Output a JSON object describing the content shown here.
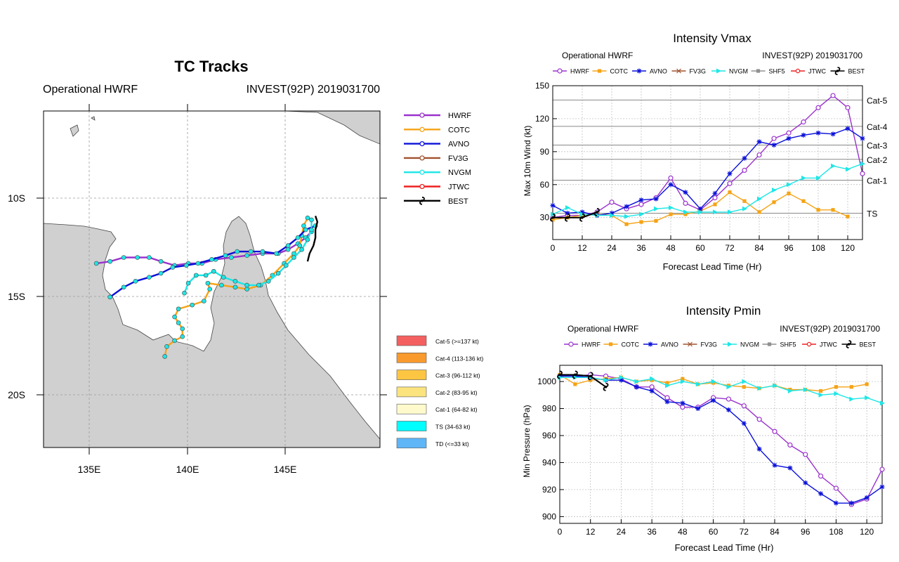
{
  "model_colors": {
    "HWRF": "#9a32cd",
    "COTC": "#f5a316",
    "AVNO": "#0a10d8",
    "FV3G": "#a0522d",
    "NVGM": "#1ee6e6",
    "SHF5": "#909090",
    "JTWC": "#ee2020",
    "BEST": "#000000"
  },
  "track_panel": {
    "title": "TC Tracks",
    "left_label": "Operational HWRF",
    "right_label": "INVEST(92P) 2019031700",
    "lat_ticks": [
      "10S",
      "15S",
      "20S"
    ],
    "lon_ticks": [
      "135E",
      "140E",
      "145E"
    ],
    "legend": [
      "HWRF",
      "COTC",
      "AVNO",
      "FV3G",
      "NVGM",
      "JTWC",
      "BEST"
    ],
    "intensity_legend": [
      {
        "label": "Cat-5 (>=137 kt)",
        "color": "#f46060"
      },
      {
        "label": "Cat-4 (113-136 kt)",
        "color": "#f99a2e"
      },
      {
        "label": "Cat-3 (96-112 kt)",
        "color": "#fcc542"
      },
      {
        "label": "Cat-2 (83-95 kt)",
        "color": "#fbe47e"
      },
      {
        "label": "Cat-1 (64-82 kt)",
        "color": "#fffacc"
      },
      {
        "label": "TS (34-63 kt)",
        "color": "#00ffff"
      },
      {
        "label": "TD (<=33 kt)",
        "color": "#5eb6f7"
      }
    ]
  },
  "vmax_panel": {
    "title": "Intensity Vmax",
    "left_label": "Operational HWRF",
    "right_label": "INVEST(92P) 2019031700",
    "ylabel": "Max 10m Wind (kt)",
    "xlabel": "Forecast Lead Time (Hr)",
    "legend": [
      "HWRF",
      "COTC",
      "AVNO",
      "FV3G",
      "NVGM",
      "SHF5",
      "JTWC",
      "BEST"
    ],
    "category_labels": [
      {
        "label": "Cat-5",
        "value": 137
      },
      {
        "label": "Cat-4",
        "value": 113
      },
      {
        "label": "Cat-3",
        "value": 96
      },
      {
        "label": "Cat-2",
        "value": 83
      },
      {
        "label": "Cat-1",
        "value": 64
      },
      {
        "label": "TS",
        "value": 34
      }
    ]
  },
  "pmin_panel": {
    "title": "Intensity Pmin",
    "left_label": "Operational HWRF",
    "right_label": "INVEST(92P) 2019031700",
    "ylabel": "Min Pressure (hPa)",
    "xlabel": "Forecast Lead Time (Hr)",
    "legend": [
      "HWRF",
      "COTC",
      "AVNO",
      "FV3G",
      "NVGM",
      "SHF5",
      "JTWC",
      "BEST"
    ]
  },
  "chart_data": [
    {
      "type": "line",
      "chart": "tracks",
      "x_axis": "longitude (deg E)",
      "y_axis": "latitude (deg S)",
      "xlim": [
        132.8,
        150
      ],
      "ylim": [
        22.5,
        5.5
      ],
      "xticks": [
        135,
        140,
        145
      ],
      "yticks": [
        10,
        15,
        20
      ],
      "series": [
        {
          "name": "HWRF",
          "points": [
            [
              135.5,
              13.2
            ],
            [
              136.2,
              13.1
            ],
            [
              136.9,
              12.9
            ],
            [
              137.6,
              12.9
            ],
            [
              138.2,
              12.9
            ],
            [
              138.8,
              13.1
            ],
            [
              139.5,
              13.3
            ],
            [
              140.2,
              13.2
            ],
            [
              140.9,
              13.2
            ],
            [
              141.6,
              13.0
            ],
            [
              142.4,
              12.9
            ],
            [
              143.2,
              12.8
            ],
            [
              144.0,
              12.7
            ],
            [
              144.8,
              12.7
            ],
            [
              145.3,
              12.5
            ],
            [
              145.8,
              12.2
            ],
            [
              146.2,
              11.9
            ],
            [
              146.5,
              11.6
            ]
          ]
        },
        {
          "name": "COTC",
          "points": [
            [
              139.0,
              17.9
            ],
            [
              139.1,
              17.4
            ],
            [
              139.5,
              17.1
            ],
            [
              139.9,
              16.9
            ],
            [
              139.9,
              16.5
            ],
            [
              139.7,
              16.2
            ],
            [
              139.5,
              15.9
            ],
            [
              139.7,
              15.5
            ],
            [
              140.4,
              15.3
            ],
            [
              141.0,
              15.1
            ],
            [
              141.3,
              14.5
            ],
            [
              141.2,
              14.2
            ],
            [
              141.9,
              14.3
            ],
            [
              142.6,
              14.4
            ],
            [
              143.2,
              14.5
            ],
            [
              143.9,
              14.3
            ],
            [
              144.5,
              13.8
            ],
            [
              145.1,
              13.2
            ],
            [
              145.6,
              12.7
            ],
            [
              145.9,
              12.3
            ],
            [
              146.0,
              11.8
            ],
            [
              146.1,
              11.3
            ],
            [
              146.3,
              10.9
            ]
          ]
        },
        {
          "name": "AVNO",
          "points": [
            [
              136.2,
              14.9
            ],
            [
              136.9,
              14.4
            ],
            [
              137.5,
              14.1
            ],
            [
              138.2,
              13.9
            ],
            [
              138.8,
              13.7
            ],
            [
              139.4,
              13.4
            ],
            [
              140.1,
              13.3
            ],
            [
              140.7,
              13.2
            ],
            [
              141.4,
              13.0
            ],
            [
              142.1,
              12.8
            ],
            [
              142.7,
              12.6
            ],
            [
              143.4,
              12.6
            ],
            [
              144.0,
              12.6
            ],
            [
              144.7,
              12.7
            ],
            [
              145.3,
              12.3
            ],
            [
              145.8,
              11.9
            ],
            [
              146.2,
              11.5
            ],
            [
              146.7,
              11.3
            ]
          ]
        },
        {
          "name": "NVGM",
          "points": [
            [
              140.0,
              14.7
            ],
            [
              140.2,
              14.2
            ],
            [
              140.6,
              13.8
            ],
            [
              141.1,
              13.8
            ],
            [
              141.5,
              13.6
            ],
            [
              142.0,
              13.9
            ],
            [
              142.6,
              14.1
            ],
            [
              143.2,
              14.3
            ],
            [
              143.8,
              14.3
            ],
            [
              144.3,
              14.1
            ],
            [
              144.8,
              13.7
            ],
            [
              145.2,
              13.3
            ],
            [
              145.6,
              12.9
            ],
            [
              146.0,
              12.5
            ],
            [
              146.3,
              12.0
            ],
            [
              146.5,
              11.5
            ],
            [
              146.5,
              11.0
            ]
          ]
        },
        {
          "name": "BEST",
          "points": [
            [
              146.3,
              13.1
            ],
            [
              146.4,
              12.7
            ],
            [
              146.6,
              12.3
            ],
            [
              146.7,
              11.9
            ],
            [
              146.7,
              11.5
            ],
            [
              146.8,
              11.1
            ],
            [
              146.7,
              10.8
            ]
          ]
        }
      ]
    },
    {
      "type": "line",
      "chart": "vmax",
      "title": "Intensity Vmax",
      "xlabel": "Forecast Lead Time (Hr)",
      "ylabel": "Max 10m Wind (kt)",
      "xlim": [
        0,
        126
      ],
      "ylim": [
        10,
        150
      ],
      "xticks": [
        0,
        12,
        24,
        36,
        48,
        60,
        72,
        84,
        96,
        108,
        120
      ],
      "yticks": [
        30,
        60,
        90,
        120,
        150
      ],
      "series": [
        {
          "name": "HWRF",
          "x": [
            0,
            6,
            12,
            18,
            24,
            30,
            36,
            42,
            48,
            54,
            60,
            66,
            72,
            78,
            84,
            90,
            96,
            102,
            108,
            114,
            120,
            126
          ],
          "values": [
            30,
            32,
            32,
            35,
            44,
            38,
            42,
            48,
            66,
            43,
            37,
            48,
            61,
            73,
            87,
            102,
            107,
            117,
            130,
            141,
            130,
            70
          ]
        },
        {
          "name": "COTC",
          "x": [
            0,
            6,
            12,
            18,
            24,
            30,
            36,
            42,
            48,
            54,
            60,
            66,
            72,
            78,
            84,
            90,
            96,
            102,
            108,
            114,
            120
          ],
          "values": [
            28,
            30,
            32,
            33,
            32,
            24,
            26,
            27,
            33,
            33,
            36,
            42,
            53,
            45,
            35,
            44,
            52,
            45,
            37,
            37,
            31
          ]
        },
        {
          "name": "AVNO",
          "x": [
            0,
            6,
            12,
            18,
            24,
            30,
            36,
            42,
            48,
            54,
            60,
            66,
            72,
            78,
            84,
            90,
            96,
            102,
            108,
            114,
            120,
            126
          ],
          "values": [
            41,
            34,
            35,
            32,
            34,
            40,
            46,
            47,
            60,
            53,
            38,
            52,
            70,
            84,
            99,
            96,
            102,
            105,
            107,
            106,
            111,
            102
          ]
        },
        {
          "name": "NVGM",
          "x": [
            0,
            6,
            12,
            18,
            24,
            30,
            36,
            42,
            48,
            54,
            60,
            66,
            72,
            78,
            84,
            90,
            96,
            102,
            108,
            114,
            120,
            126
          ],
          "values": [
            33,
            39,
            33,
            32,
            32,
            31,
            33,
            38,
            39,
            35,
            35,
            35,
            35,
            38,
            47,
            55,
            60,
            66,
            66,
            77,
            74,
            79
          ]
        },
        {
          "name": "BEST",
          "x": [
            0,
            6,
            12,
            18
          ],
          "values": [
            30,
            30,
            30,
            35
          ]
        }
      ]
    },
    {
      "type": "line",
      "chart": "pmin",
      "title": "Intensity Pmin",
      "xlabel": "Forecast Lead Time (Hr)",
      "ylabel": "Min Pressure (hPa)",
      "xlim": [
        0,
        126
      ],
      "ylim": [
        895,
        1012
      ],
      "xticks": [
        0,
        12,
        24,
        36,
        48,
        60,
        72,
        84,
        96,
        108,
        120
      ],
      "yticks": [
        900,
        920,
        940,
        960,
        980,
        1000
      ],
      "series": [
        {
          "name": "HWRF",
          "x": [
            0,
            6,
            12,
            18,
            24,
            30,
            36,
            42,
            48,
            54,
            60,
            66,
            72,
            78,
            84,
            90,
            96,
            102,
            108,
            114,
            120,
            126
          ],
          "values": [
            1004,
            1004,
            1005,
            1004,
            1002,
            996,
            996,
            988,
            981,
            981,
            988,
            987,
            982,
            972,
            963,
            953,
            946,
            930,
            921,
            909,
            913,
            935
          ]
        },
        {
          "name": "COTC",
          "x": [
            0,
            6,
            12,
            18,
            24,
            30,
            36,
            42,
            48,
            54,
            60,
            66,
            72,
            78,
            84,
            90,
            96,
            102,
            108,
            114,
            120,
            126
          ],
          "values": [
            1005,
            998,
            1001,
            1002,
            1003,
            1000,
            1001,
            999,
            1002,
            998,
            999,
            997,
            996,
            995,
            997,
            994,
            994,
            993,
            996,
            996,
            998,
            null
          ]
        },
        {
          "name": "AVNO",
          "x": [
            0,
            6,
            12,
            18,
            24,
            30,
            36,
            42,
            48,
            54,
            60,
            66,
            72,
            78,
            84,
            90,
            96,
            102,
            108,
            114,
            120,
            126
          ],
          "values": [
            1004,
            1004,
            1003,
            1001,
            1001,
            996,
            993,
            985,
            984,
            980,
            986,
            979,
            969,
            950,
            938,
            936,
            925,
            917,
            910,
            910,
            914,
            922
          ]
        },
        {
          "name": "NVGM",
          "x": [
            0,
            6,
            12,
            18,
            24,
            30,
            36,
            42,
            48,
            54,
            60,
            66,
            72,
            78,
            84,
            90,
            96,
            102,
            108,
            114,
            120,
            126
          ],
          "values": [
            1003,
            1003,
            1003,
            1001,
            1003,
            1000,
            1002,
            997,
            1000,
            998,
            1000,
            996,
            1000,
            995,
            997,
            993,
            994,
            990,
            991,
            987,
            988,
            984
          ]
        },
        {
          "name": "BEST",
          "x": [
            0,
            6,
            12,
            18
          ],
          "values": [
            1005,
            1005,
            1004,
            996
          ]
        }
      ]
    }
  ]
}
